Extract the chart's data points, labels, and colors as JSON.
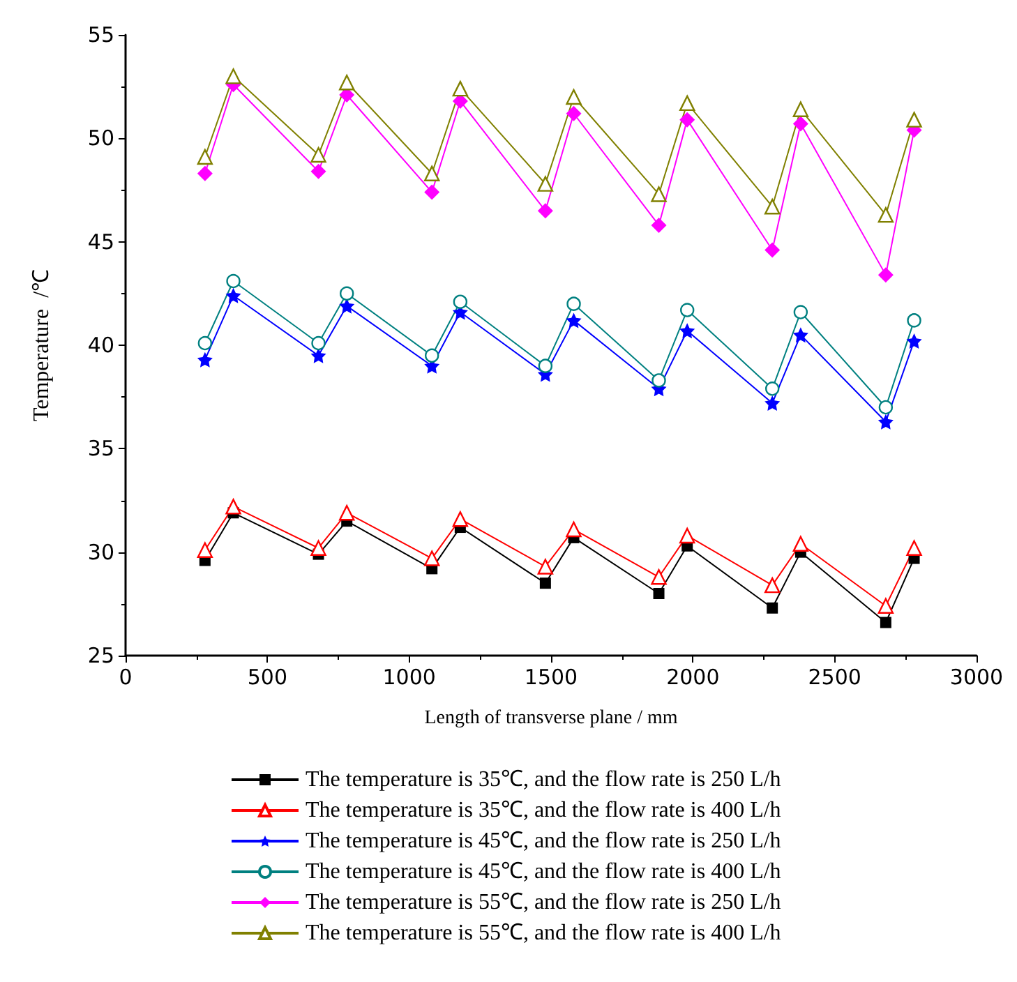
{
  "chart_data": {
    "type": "line",
    "xlabel": "Length of transverse plane / mm",
    "ylabel": "Temperature  /℃",
    "x": [
      280,
      380,
      680,
      780,
      1080,
      1180,
      1480,
      1580,
      1880,
      1980,
      2280,
      2380,
      2680,
      2780
    ],
    "xlim": [
      0,
      3000
    ],
    "xticks": [
      0,
      500,
      1000,
      1500,
      2000,
      2500,
      3000
    ],
    "ylim": [
      25,
      55
    ],
    "yticks": [
      25,
      30,
      35,
      40,
      45,
      50,
      55
    ],
    "grid": false,
    "legend": "bottom",
    "line_style": "solid",
    "series": [
      {
        "name": "The temperature is 35℃, and the flow rate is 250 L/h",
        "color": "#000000",
        "marker": "square",
        "values": [
          29.6,
          31.9,
          29.9,
          31.5,
          29.2,
          31.2,
          28.5,
          30.7,
          28.0,
          30.3,
          27.3,
          30.0,
          26.6,
          29.7
        ]
      },
      {
        "name": "The temperature is 35℃, and the flow rate is 400 L/h",
        "color": "#ff0000",
        "marker": "triangle",
        "values": [
          30.1,
          32.2,
          30.2,
          31.9,
          29.7,
          31.6,
          29.3,
          31.1,
          28.8,
          30.8,
          28.4,
          30.4,
          27.4,
          30.2
        ]
      },
      {
        "name": "The temperature is 45℃, and the flow rate is 250 L/h",
        "color": "#0000ff",
        "marker": "star",
        "values": [
          39.3,
          42.4,
          39.5,
          41.9,
          39.0,
          41.6,
          38.6,
          41.2,
          37.9,
          40.7,
          37.2,
          40.5,
          36.3,
          40.2
        ]
      },
      {
        "name": "The temperature is 45℃, and the flow rate is 400 L/h",
        "color": "#008080",
        "marker": "circle",
        "values": [
          40.1,
          43.1,
          40.1,
          42.5,
          39.5,
          42.1,
          39.0,
          42.0,
          38.3,
          41.7,
          37.9,
          41.6,
          37.0,
          41.2
        ]
      },
      {
        "name": "The temperature is 55℃, and the flow rate is 250 L/h",
        "color": "#ff00ff",
        "marker": "diamond",
        "values": [
          48.3,
          52.6,
          48.4,
          52.1,
          47.4,
          51.8,
          46.5,
          51.2,
          45.8,
          50.9,
          44.6,
          50.7,
          43.4,
          50.4
        ]
      },
      {
        "name": "The temperature is 55℃, and the flow rate is 400 L/h",
        "color": "#808000",
        "marker": "triangle",
        "values": [
          49.1,
          53.0,
          49.2,
          52.7,
          48.3,
          52.4,
          47.8,
          52.0,
          47.3,
          51.7,
          46.7,
          51.4,
          46.3,
          50.9
        ]
      }
    ]
  }
}
